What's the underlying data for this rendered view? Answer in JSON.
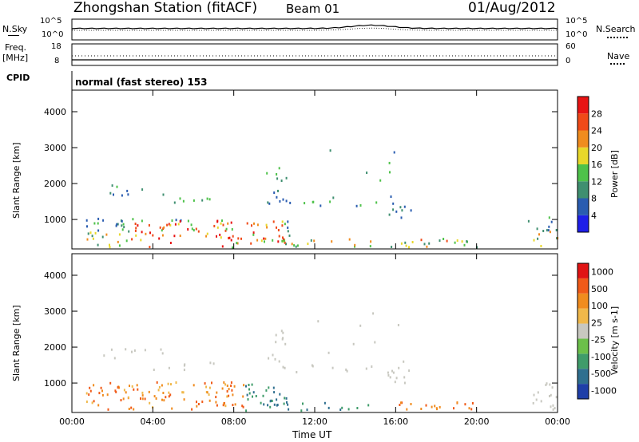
{
  "header": {
    "station": "Zhongshan Station (fitACF)",
    "beam": "Beam 01",
    "date": "01/Aug/2012"
  },
  "summary": {
    "nsky_label": "N.Sky",
    "nsearch_label": "N.Search",
    "freq_label_line1": "Freq.",
    "freq_label_line2": "[MHz]",
    "nave_label": "Nave",
    "cpid_label": "CPID",
    "cpid_text": "normal (fast stereo) 153",
    "noise_ticks_left": [
      "10^5",
      "10^0"
    ],
    "noise_ticks_right": [
      "10^5",
      "10^0"
    ],
    "freq_ticks": [
      "18",
      "8"
    ],
    "nave_ticks": [
      "60",
      "0"
    ]
  },
  "x_axis": {
    "label": "Time UT",
    "ticks": [
      "00:00",
      "04:00",
      "08:00",
      "12:00",
      "16:00",
      "20:00",
      "00:00"
    ]
  },
  "chart_data": [
    {
      "type": "heatmap",
      "panel": "power",
      "ylabel": "Slant Range [km]",
      "yticks": [
        1000,
        2000,
        3000,
        4000
      ],
      "ylim": [
        180,
        4600
      ],
      "xlim": [
        0,
        24
      ],
      "colorbar_label": "Power [dB]",
      "colorbar_ticks": [
        "4",
        "8",
        "12",
        "16",
        "20",
        "24",
        "28"
      ],
      "colors": [
        "#1e1ee8",
        "#2a5cb0",
        "#3f8f70",
        "#4ec24a",
        "#e8d82a",
        "#f08c1e",
        "#f04a18",
        "#e81414"
      ]
    },
    {
      "type": "heatmap",
      "panel": "velocity",
      "ylabel": "Slant Range [km]",
      "yticks": [
        1000,
        2000,
        3000,
        4000
      ],
      "ylim": [
        180,
        4600
      ],
      "xlim": [
        0,
        24
      ],
      "colorbar_label": "Velocity [m s-1]",
      "colorbar_ticks": [
        "1000",
        "500",
        "100",
        "25",
        "-25",
        "-100",
        "-500",
        "-1000"
      ],
      "colors": [
        "#1f3fa8",
        "#2f6f8f",
        "#3f9c6a",
        "#6cc04a",
        "#c8c8c0",
        "#f0b84a",
        "#f08c1e",
        "#f05a18",
        "#e01414"
      ]
    }
  ]
}
